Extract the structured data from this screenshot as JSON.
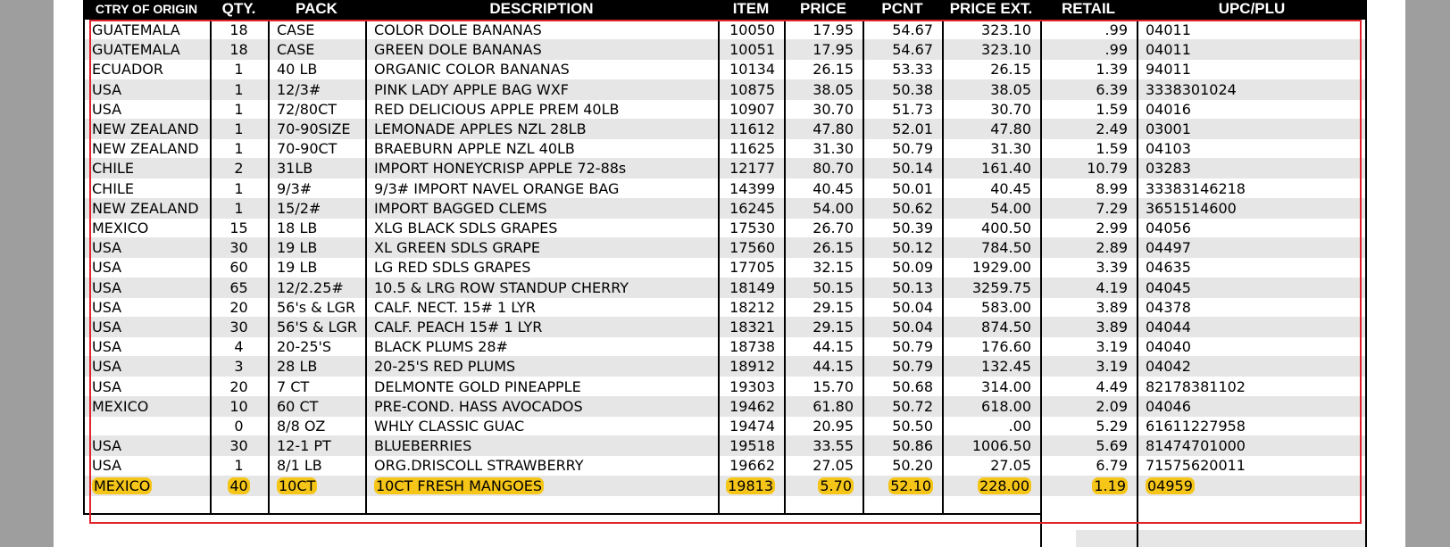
{
  "columns": [
    "CTRY OF ORIGIN",
    "QTY.",
    "PACK",
    "DESCRIPTION",
    "ITEM",
    "PRICE",
    "PCNT",
    "PRICE EXT.",
    "RETAIL",
    "UPC/PLU"
  ],
  "rows": [
    [
      "GUATEMALA",
      "18",
      "CASE",
      "COLOR DOLE BANANAS",
      "10050",
      "17.95",
      "54.67",
      "323.10",
      ".99",
      "04011"
    ],
    [
      "GUATEMALA",
      "18",
      "CASE",
      "GREEN DOLE BANANAS",
      "10051",
      "17.95",
      "54.67",
      "323.10",
      ".99",
      "04011"
    ],
    [
      "ECUADOR",
      "1",
      "40 LB",
      "ORGANIC COLOR BANANAS",
      "10134",
      "26.15",
      "53.33",
      "26.15",
      "1.39",
      "94011"
    ],
    [
      "USA",
      "1",
      "12/3#",
      "PINK LADY APPLE BAG WXF",
      "10875",
      "38.05",
      "50.38",
      "38.05",
      "6.39",
      "3338301024"
    ],
    [
      "USA",
      "1",
      "72/80CT",
      "RED DELICIOUS APPLE PREM 40LB",
      "10907",
      "30.70",
      "51.73",
      "30.70",
      "1.59",
      "04016"
    ],
    [
      "NEW ZEALAND",
      "1",
      "70-90SIZE",
      "LEMONADE APPLES NZL 28LB",
      "11612",
      "47.80",
      "52.01",
      "47.80",
      "2.49",
      "03001"
    ],
    [
      "NEW ZEALAND",
      "1",
      "70-90CT",
      "BRAEBURN APPLE NZL 40LB",
      "11625",
      "31.30",
      "50.79",
      "31.30",
      "1.59",
      "04103"
    ],
    [
      "CHILE",
      "2",
      "31LB",
      "IMPORT HONEYCRISP APPLE 72-88s",
      "12177",
      "80.70",
      "50.14",
      "161.40",
      "10.79",
      "03283"
    ],
    [
      "CHILE",
      "1",
      "9/3#",
      "9/3# IMPORT NAVEL ORANGE BAG",
      "14399",
      "40.45",
      "50.01",
      "40.45",
      "8.99",
      "33383146218"
    ],
    [
      "NEW ZEALAND",
      "1",
      "15/2#",
      "IMPORT BAGGED CLEMS",
      "16245",
      "54.00",
      "50.62",
      "54.00",
      "7.29",
      "3651514600"
    ],
    [
      "MEXICO",
      "15",
      "18 LB",
      "XLG BLACK SDLS GRAPES",
      "17530",
      "26.70",
      "50.39",
      "400.50",
      "2.99",
      "04056"
    ],
    [
      "USA",
      "30",
      "19 LB",
      "XL GREEN SDLS GRAPE",
      "17560",
      "26.15",
      "50.12",
      "784.50",
      "2.89",
      "04497"
    ],
    [
      "USA",
      "60",
      "19 LB",
      "LG RED SDLS GRAPES",
      "17705",
      "32.15",
      "50.09",
      "1929.00",
      "3.39",
      "04635"
    ],
    [
      "USA",
      "65",
      "12/2.25#",
      "10.5 & LRG ROW STANDUP CHERRY",
      "18149",
      "50.15",
      "50.13",
      "3259.75",
      "4.19",
      "04045"
    ],
    [
      "USA",
      "20",
      "56's & LGR",
      "CALF. NECT. 15# 1 LYR",
      "18212",
      "29.15",
      "50.04",
      "583.00",
      "3.89",
      "04378"
    ],
    [
      "USA",
      "30",
      "56'S & LGR",
      "CALF. PEACH 15# 1 LYR",
      "18321",
      "29.15",
      "50.04",
      "874.50",
      "3.89",
      "04044"
    ],
    [
      "USA",
      "4",
      "20-25'S",
      "BLACK PLUMS 28#",
      "18738",
      "44.15",
      "50.79",
      "176.60",
      "3.19",
      "04040"
    ],
    [
      "USA",
      "3",
      "28 LB",
      "20-25'S RED PLUMS",
      "18912",
      "44.15",
      "50.79",
      "132.45",
      "3.19",
      "04042"
    ],
    [
      "USA",
      "20",
      "7 CT",
      "DELMONTE GOLD PINEAPPLE",
      "19303",
      "15.70",
      "50.68",
      "314.00",
      "4.49",
      "82178381102"
    ],
    [
      "MEXICO",
      "10",
      "60 CT",
      "PRE-COND. HASS AVOCADOS",
      "19462",
      "61.80",
      "50.72",
      "618.00",
      "2.09",
      "04046"
    ],
    [
      "",
      "0",
      "8/8 OZ",
      "WHLY CLASSIC GUAC",
      "19474",
      "20.95",
      "50.50",
      ".00",
      "5.29",
      "61611227958"
    ],
    [
      "USA",
      "30",
      "12-1 PT",
      "BLUEBERRIES",
      "19518",
      "33.55",
      "50.86",
      "1006.50",
      "5.69",
      "81474701000"
    ],
    [
      "USA",
      "1",
      "8/1 LB",
      "ORG.DRISCOLL STRAWBERRY",
      "19662",
      "27.05",
      "50.20",
      "27.05",
      "6.79",
      "71575620011"
    ],
    [
      "MEXICO",
      "40",
      "10CT",
      "10CT FRESH MANGOES",
      "19813",
      "5.70",
      "52.10",
      "228.00",
      "1.19",
      "04959"
    ]
  ],
  "highlighted_row": 23,
  "colors": {
    "header_bg": "#000000",
    "row_shade": "#e6e6e6",
    "highlight": "#f5c518",
    "selection_border": "#e0232b"
  }
}
